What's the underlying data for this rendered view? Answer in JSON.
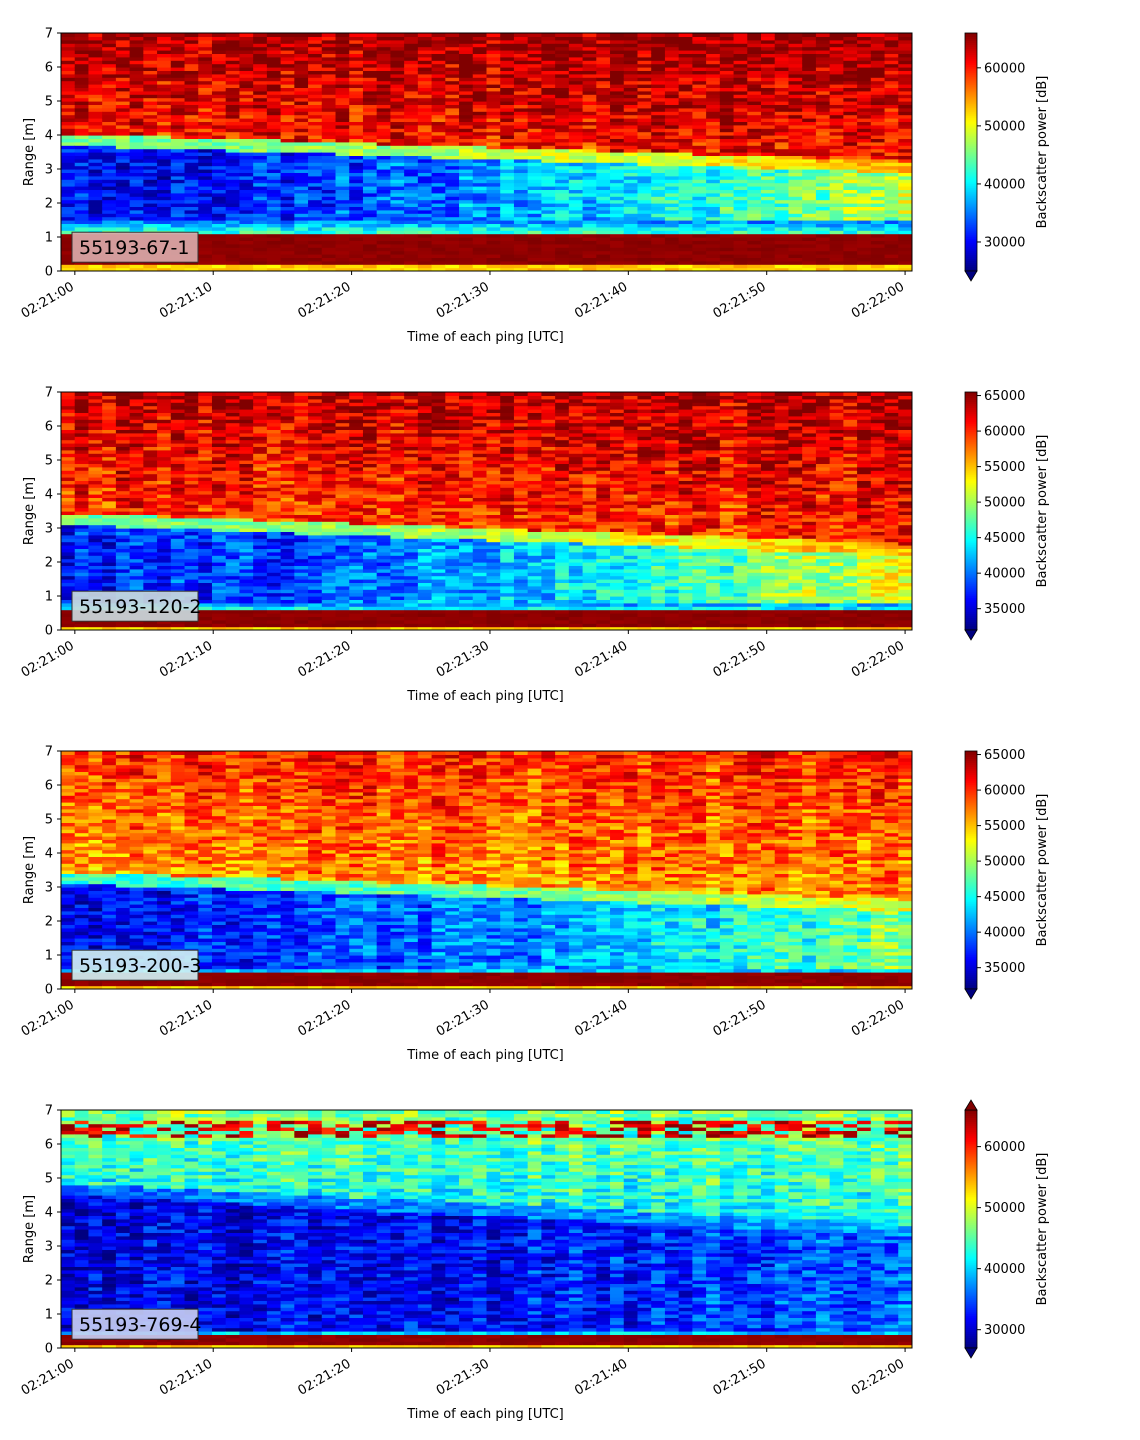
{
  "chart_data": [
    {
      "type": "heatmap",
      "label": "55193-67-1",
      "xlabel": "Time of each ping [UTC]",
      "ylabel": "Range [m]",
      "x_ticks": [
        "02:21:00",
        "02:21:10",
        "02:21:20",
        "02:21:30",
        "02:21:40",
        "02:21:50",
        "02:22:00"
      ],
      "y_ticks": [
        "0",
        "1",
        "2",
        "3",
        "4",
        "5",
        "6",
        "7"
      ],
      "ylim": [
        0,
        7
      ],
      "xlim_seconds": [
        -1,
        60.5
      ],
      "colorbar_label": "Backscatter power [dB]",
      "colorbar_ticks": [
        "30000",
        "40000",
        "50000",
        "60000"
      ],
      "color_range": [
        25000,
        66000
      ],
      "colorbar_extend": "min",
      "colormap": "jet",
      "label_box_color": "#d9a9a9",
      "profile": {
        "surface_band": [
          0.2,
          1.15
        ],
        "low_band_top_start": 3.7,
        "low_band_top_end": 2.9,
        "low_bottom": 1.5,
        "low_value": 0.12,
        "low_value_end": 0.55,
        "high_value": 0.85
      }
    },
    {
      "type": "heatmap",
      "label": "55193-120-2",
      "xlabel": "Time of each ping [UTC]",
      "ylabel": "Range [m]",
      "x_ticks": [
        "02:21:00",
        "02:21:10",
        "02:21:20",
        "02:21:30",
        "02:21:40",
        "02:21:50",
        "02:22:00"
      ],
      "y_ticks": [
        "0",
        "1",
        "2",
        "3",
        "4",
        "5",
        "6",
        "7"
      ],
      "ylim": [
        0,
        7
      ],
      "xlim_seconds": [
        -1,
        60.5
      ],
      "colorbar_label": "Backscatter power [dB]",
      "colorbar_ticks": [
        "35000",
        "40000",
        "45000",
        "50000",
        "55000",
        "60000",
        "65000"
      ],
      "color_range": [
        32000,
        65500
      ],
      "colorbar_extend": "min",
      "colormap": "jet",
      "label_box_color": "#c9d9dd",
      "profile": {
        "surface_band": [
          0.1,
          0.6
        ],
        "low_band_top_start": 3.1,
        "low_band_top_end": 2.2,
        "low_bottom": 0.8,
        "low_value": 0.15,
        "low_value_end": 0.6,
        "high_value": 0.82
      }
    },
    {
      "type": "heatmap",
      "label": "55193-200-3",
      "xlabel": "Time of each ping [UTC]",
      "ylabel": "Range [m]",
      "x_ticks": [
        "02:21:00",
        "02:21:10",
        "02:21:20",
        "02:21:30",
        "02:21:40",
        "02:21:50",
        "02:22:00"
      ],
      "y_ticks": [
        "0",
        "1",
        "2",
        "3",
        "4",
        "5",
        "6",
        "7"
      ],
      "ylim": [
        0,
        7
      ],
      "xlim_seconds": [
        -1,
        60.5
      ],
      "colorbar_label": "Backscatter power [dB]",
      "colorbar_ticks": [
        "35000",
        "40000",
        "45000",
        "50000",
        "55000",
        "60000",
        "65000"
      ],
      "color_range": [
        32000,
        65500
      ],
      "colorbar_extend": "min",
      "colormap": "jet",
      "label_box_color": "#cfeff3",
      "profile": {
        "surface_band": [
          0.1,
          0.5
        ],
        "low_band_top_start": 3.1,
        "low_band_top_end": 2.3,
        "low_bottom": 0.6,
        "low_value": 0.13,
        "low_value_end": 0.5,
        "high_value": 0.72
      }
    },
    {
      "type": "heatmap",
      "label": "55193-769-4",
      "xlabel": "Time of each ping [UTC]",
      "ylabel": "Range [m]",
      "x_ticks": [
        "02:21:00",
        "02:21:10",
        "02:21:20",
        "02:21:30",
        "02:21:40",
        "02:21:50",
        "02:22:00"
      ],
      "y_ticks": [
        "0",
        "1",
        "2",
        "3",
        "4",
        "5",
        "6",
        "7"
      ],
      "ylim": [
        0,
        7
      ],
      "xlim_seconds": [
        -1,
        60.5
      ],
      "colorbar_label": "Backscatter power [dB]",
      "colorbar_ticks": [
        "30000",
        "40000",
        "50000",
        "60000"
      ],
      "color_range": [
        27000,
        66000
      ],
      "colorbar_extend": "both",
      "colormap": "jet",
      "label_box_color": "#c4ccf2",
      "profile": {
        "surface_band": [
          0.15,
          0.4
        ],
        "low_band_top_start": 4.5,
        "low_band_top_end": 3.3,
        "low_bottom": 0.5,
        "low_value": 0.1,
        "low_value_end": 0.22,
        "high_value": 0.38,
        "top_stripe": [
          6.2,
          6.7
        ]
      }
    }
  ]
}
